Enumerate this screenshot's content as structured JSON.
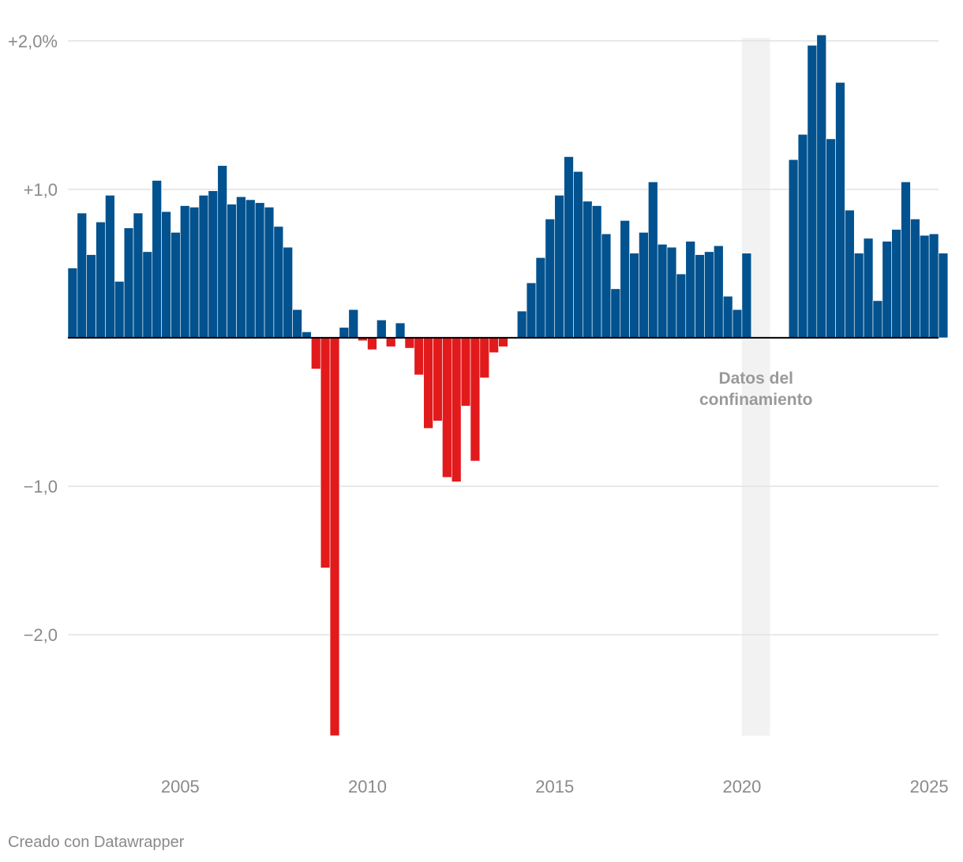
{
  "chart_data": {
    "type": "bar",
    "title": "",
    "xlabel": "",
    "ylabel": "",
    "unit": "%",
    "ylim": [
      -2.68,
      2.02
    ],
    "xlim": [
      2002.0,
      2025.25
    ],
    "frequency": "quarterly",
    "grid": true,
    "y_ticks": [
      {
        "value": 2.0,
        "label": "+2,0%"
      },
      {
        "value": 1.0,
        "label": "+1,0"
      },
      {
        "value": -1.0,
        "label": "−1,0"
      },
      {
        "value": -2.0,
        "label": "−2,0"
      }
    ],
    "x_ticks": [
      {
        "value": 2005,
        "label": "2005"
      },
      {
        "value": 2010,
        "label": "2010"
      },
      {
        "value": 2015,
        "label": "2015"
      },
      {
        "value": 2020,
        "label": "2020"
      },
      {
        "value": 2025,
        "label": "2025"
      }
    ],
    "start_year": 2002,
    "values": [
      0.47,
      0.84,
      0.56,
      0.78,
      0.96,
      0.38,
      0.74,
      0.84,
      0.58,
      1.06,
      0.85,
      0.71,
      0.89,
      0.88,
      0.96,
      0.99,
      1.16,
      0.9,
      0.95,
      0.93,
      0.91,
      0.88,
      0.75,
      0.61,
      0.19,
      0.04,
      -0.21,
      -1.55,
      -2.68,
      0.07,
      0.19,
      -0.02,
      -0.08,
      0.12,
      -0.06,
      0.1,
      -0.07,
      -0.25,
      -0.61,
      -0.56,
      -0.94,
      -0.97,
      -0.46,
      -0.83,
      -0.27,
      -0.1,
      -0.06,
      0.0,
      0.18,
      0.37,
      0.54,
      0.8,
      0.96,
      1.22,
      1.12,
      0.92,
      0.89,
      0.7,
      0.33,
      0.79,
      0.57,
      0.71,
      1.05,
      0.63,
      0.61,
      0.43,
      0.65,
      0.56,
      0.58,
      0.62,
      0.28,
      0.19,
      0.57,
      0.0,
      0.0,
      0.0,
      0.0,
      1.2,
      1.37,
      1.97,
      2.04,
      1.34,
      1.72,
      0.86,
      0.57,
      0.67,
      0.25,
      0.65,
      0.73,
      1.05,
      0.8,
      0.69,
      0.7,
      0.57
    ],
    "colors": {
      "positive": "#01528f",
      "negative": "#e21a1c",
      "shade": "#f2f2f2",
      "grid": "#e2e2e2",
      "zero_line": "#000000"
    },
    "shaded_regions": [
      {
        "from": 2020.0,
        "to": 2020.75,
        "label_line1": "Datos del",
        "label_line2": "confinamiento"
      }
    ]
  },
  "footer": {
    "credit": "Creado con Datawrapper"
  }
}
